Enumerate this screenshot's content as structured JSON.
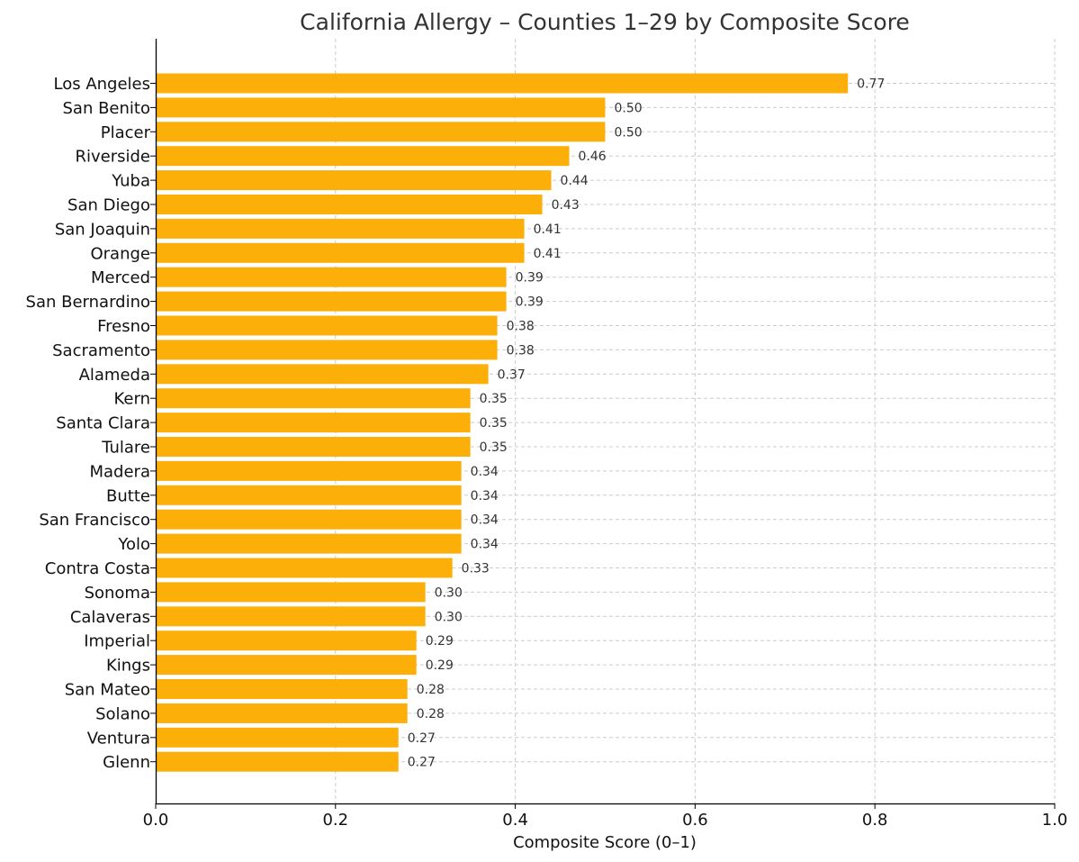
{
  "chart_data": {
    "type": "bar",
    "orientation": "horizontal",
    "title": "California Allergy – Counties 1–29 by Composite Score",
    "xlabel": "Composite Score (0–1)",
    "ylabel": "",
    "xlim": [
      0.0,
      1.0
    ],
    "x_ticks": [
      "0.0",
      "0.2",
      "0.4",
      "0.6",
      "0.8",
      "1.0"
    ],
    "grid": true,
    "bar_color": "#FBAF08",
    "categories": [
      "Los Angeles",
      "San Benito",
      "Placer",
      "Riverside",
      "Yuba",
      "San Diego",
      "San Joaquin",
      "Orange",
      "Merced",
      "San Bernardino",
      "Fresno",
      "Sacramento",
      "Alameda",
      "Kern",
      "Santa Clara",
      "Tulare",
      "Madera",
      "Butte",
      "San Francisco",
      "Yolo",
      "Contra Costa",
      "Sonoma",
      "Calaveras",
      "Imperial",
      "Kings",
      "San Mateo",
      "Solano",
      "Ventura",
      "Glenn"
    ],
    "values": [
      0.77,
      0.5,
      0.5,
      0.46,
      0.44,
      0.43,
      0.41,
      0.41,
      0.39,
      0.39,
      0.38,
      0.38,
      0.37,
      0.35,
      0.35,
      0.35,
      0.34,
      0.34,
      0.34,
      0.34,
      0.33,
      0.3,
      0.3,
      0.29,
      0.29,
      0.28,
      0.28,
      0.27,
      0.27
    ],
    "value_labels": [
      "0.77",
      "0.50",
      "0.50",
      "0.46",
      "0.44",
      "0.43",
      "0.41",
      "0.41",
      "0.39",
      "0.39",
      "0.38",
      "0.38",
      "0.37",
      "0.35",
      "0.35",
      "0.35",
      "0.34",
      "0.34",
      "0.34",
      "0.34",
      "0.33",
      "0.30",
      "0.30",
      "0.29",
      "0.29",
      "0.28",
      "0.28",
      "0.27",
      "0.27"
    ]
  }
}
